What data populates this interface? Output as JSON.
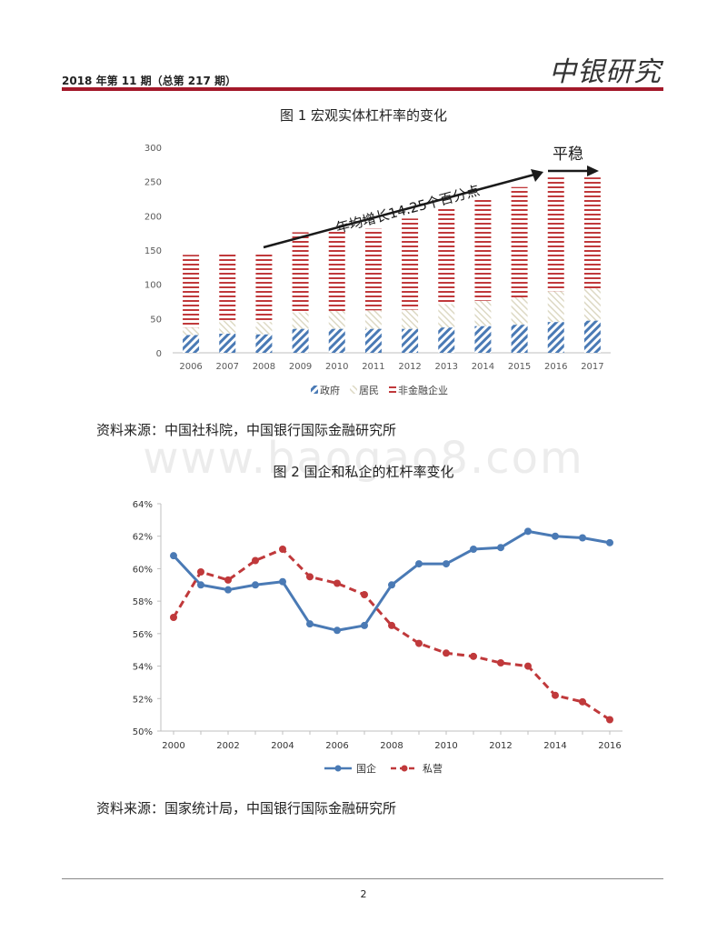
{
  "header": {
    "issue": "2018 年第 11 期（总第 217 期）",
    "brand": "中银研究"
  },
  "watermark": "www.baogao8.com",
  "figure1": {
    "title": "图 1    宏观实体杠杆率的变化",
    "source": "资料来源：中国社科院，中国银行国际金融研究所",
    "annotation_growth": "年均增长14.25个百分点",
    "annotation_stable": "平稳",
    "colors": {
      "gov": "#4a7ab5",
      "res": "#ddd9c4",
      "corp": "#c0393b"
    }
  },
  "figure2": {
    "title": "图 2    国企和私企的杠杆率变化",
    "source": "资料来源：国家统计局，中国银行国际金融研究所",
    "colors": {
      "soe": "#4a7ab5",
      "private": "#c0393b"
    }
  },
  "footer": {
    "page": "2"
  },
  "chart_data": [
    {
      "type": "bar",
      "stacked": true,
      "categories": [
        "2006",
        "2007",
        "2008",
        "2009",
        "2010",
        "2011",
        "2012",
        "2013",
        "2014",
        "2015",
        "2016",
        "2017"
      ],
      "series": [
        {
          "name": "政府",
          "values": [
            26,
            28,
            27,
            35,
            35,
            35,
            35,
            37,
            39,
            41,
            45,
            47
          ]
        },
        {
          "name": "居民",
          "values": [
            11,
            19,
            18,
            24,
            26,
            27,
            28,
            34,
            37,
            40,
            45,
            47
          ]
        },
        {
          "name": "非金融企业",
          "values": [
            106,
            98,
            99,
            117,
            119,
            119,
            133,
            140,
            150,
            161,
            166,
            162
          ]
        }
      ],
      "ylim": [
        0,
        300
      ],
      "yticks": [
        "0",
        "50",
        "100",
        "150",
        "200",
        "250",
        "300"
      ],
      "legend": "bottom"
    },
    {
      "type": "line",
      "x": [
        2000,
        2001,
        2002,
        2003,
        2004,
        2005,
        2006,
        2007,
        2008,
        2009,
        2010,
        2011,
        2012,
        2013,
        2014,
        2015,
        2016
      ],
      "series": [
        {
          "name": "国企",
          "values": [
            60.8,
            59.0,
            58.7,
            59.0,
            59.2,
            56.6,
            56.2,
            56.5,
            59.0,
            60.3,
            60.3,
            61.2,
            61.3,
            62.3,
            62.0,
            61.9,
            61.6
          ]
        },
        {
          "name": "私营",
          "values": [
            57.0,
            59.8,
            59.3,
            60.5,
            61.2,
            59.5,
            59.1,
            58.4,
            56.5,
            55.4,
            54.8,
            54.6,
            54.2,
            54.0,
            52.2,
            51.8,
            50.7
          ]
        }
      ],
      "ylim": [
        50,
        64
      ],
      "yticks": [
        "50%",
        "52%",
        "54%",
        "56%",
        "58%",
        "60%",
        "62%",
        "64%"
      ],
      "xticks": [
        "2000",
        "2002",
        "2004",
        "2006",
        "2008",
        "2010",
        "2012",
        "2014",
        "2016"
      ],
      "legend": "bottom"
    }
  ]
}
